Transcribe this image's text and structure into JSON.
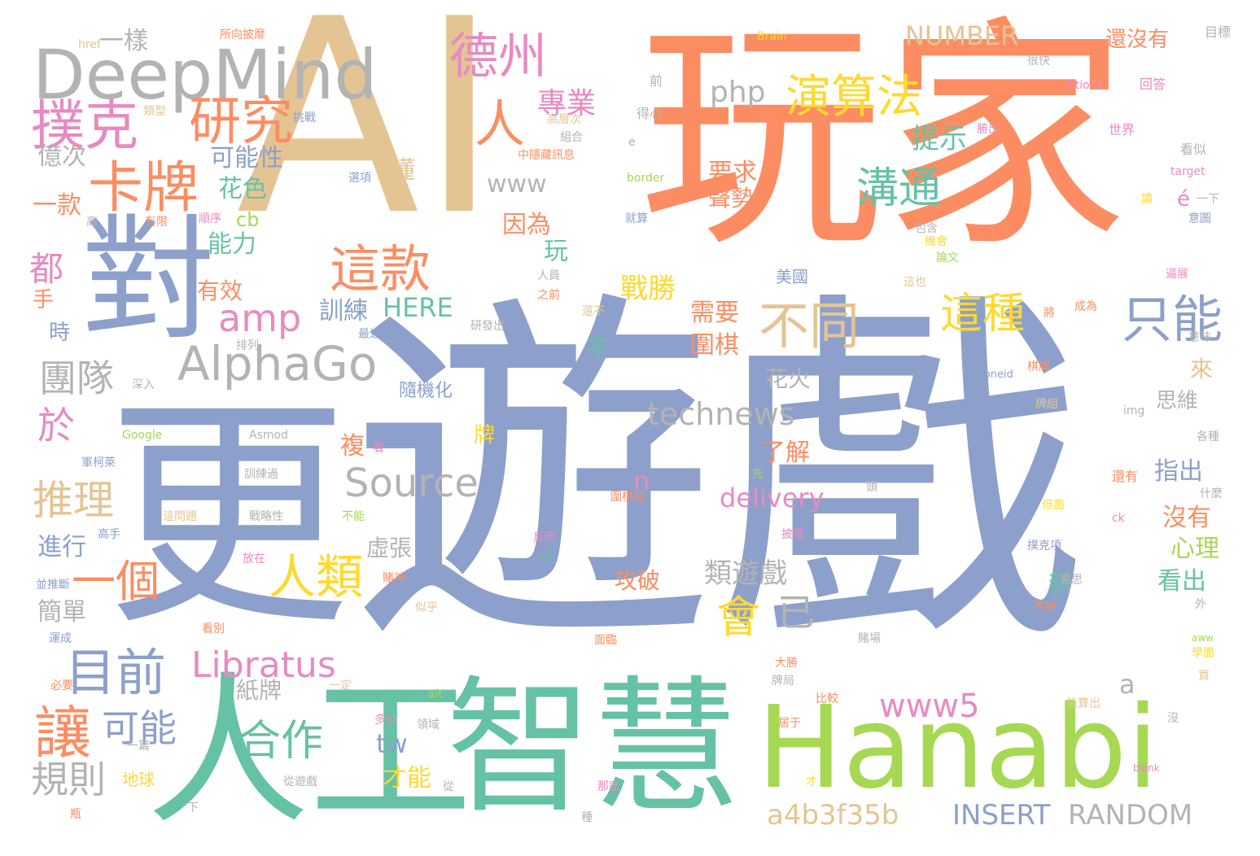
{
  "palette": {
    "salmon": "#fc8d62",
    "periwinkle": "#8da0cb",
    "teal": "#66c2a5",
    "gold": "#e5c494",
    "lime": "#a6d854",
    "gray": "#b3b3b3",
    "pink": "#e78ac3",
    "yellow": "#ffd92f"
  },
  "words": [
    {
      "text": "AI"
    },
    {
      "text": "玩家"
    },
    {
      "text": "遊戲"
    },
    {
      "text": "更"
    },
    {
      "text": "對"
    },
    {
      "text": "人工"
    },
    {
      "text": "智慧"
    },
    {
      "text": "Hanabi"
    },
    {
      "text": "DeepMind"
    },
    {
      "text": "撲克"
    },
    {
      "text": "研究"
    },
    {
      "text": "卡牌"
    },
    {
      "text": "德州"
    },
    {
      "text": "人"
    },
    {
      "text": "演算法"
    },
    {
      "text": "專業"
    },
    {
      "text": "AlphaGo"
    },
    {
      "text": "這款"
    },
    {
      "text": "不同"
    },
    {
      "text": "只能"
    },
    {
      "text": "這種"
    },
    {
      "text": "溝通"
    },
    {
      "text": "提示"
    },
    {
      "text": "目前"
    },
    {
      "text": "Libratus"
    },
    {
      "text": "讓"
    },
    {
      "text": "可能"
    },
    {
      "text": "合作"
    },
    {
      "text": "規則"
    },
    {
      "text": "人類"
    },
    {
      "text": "一個"
    },
    {
      "text": "推理"
    },
    {
      "text": "於"
    },
    {
      "text": "都"
    },
    {
      "text": "團隊"
    },
    {
      "text": "Source"
    },
    {
      "text": "technews"
    },
    {
      "text": "amp"
    },
    {
      "text": "會"
    },
    {
      "text": "已"
    },
    {
      "text": "www5"
    },
    {
      "text": "a4b3f35b"
    },
    {
      "text": "INSERT"
    },
    {
      "text": "RANDOM"
    },
    {
      "text": "NUMBER"
    },
    {
      "text": "還沒有"
    },
    {
      "text": "php"
    },
    {
      "text": "www"
    },
    {
      "text": "delivery"
    },
    {
      "text": "HERE"
    },
    {
      "text": "可能性"
    },
    {
      "text": "花色"
    },
    {
      "text": "能力"
    },
    {
      "text": "億次"
    },
    {
      "text": "一款"
    },
    {
      "text": "一樣"
    },
    {
      "text": "有效"
    },
    {
      "text": "訓練"
    },
    {
      "text": "戰勝"
    },
    {
      "text": "需要"
    },
    {
      "text": "圍棋"
    },
    {
      "text": "要求"
    },
    {
      "text": "聲勢"
    },
    {
      "text": "因為"
    },
    {
      "text": "玩"
    },
    {
      "text": "懂"
    },
    {
      "text": "cb"
    },
    {
      "text": "花火"
    },
    {
      "text": "為"
    },
    {
      "text": "來"
    },
    {
      "text": "思維"
    },
    {
      "text": "了解"
    },
    {
      "text": "指出"
    },
    {
      "text": "沒有"
    },
    {
      "text": "心理"
    },
    {
      "text": "看出"
    },
    {
      "text": "新"
    },
    {
      "text": "類遊戲"
    },
    {
      "text": "攻破"
    },
    {
      "text": "虛張"
    },
    {
      "text": "紙牌"
    },
    {
      "text": "簡單"
    },
    {
      "text": "進行"
    },
    {
      "text": "才能"
    },
    {
      "text": "tw"
    },
    {
      "text": "n"
    },
    {
      "text": "a"
    },
    {
      "text": "é"
    },
    {
      "text": "不"
    },
    {
      "text": "牌"
    },
    {
      "text": "複"
    },
    {
      "text": "隨機化"
    },
    {
      "text": "美國"
    },
    {
      "text": "時"
    },
    {
      "text": "手"
    },
    {
      "text": "一下"
    },
    {
      "text": "目標"
    },
    {
      "text": "回答"
    },
    {
      "text": "世界"
    },
    {
      "text": "看似"
    },
    {
      "text": "target"
    },
    {
      "text": "讀"
    },
    {
      "text": "意圖"
    },
    {
      "text": "逼展"
    },
    {
      "text": "這也"
    },
    {
      "text": "成為"
    },
    {
      "text": "將"
    },
    {
      "text": "意味"
    },
    {
      "text": "棋牌"
    },
    {
      "text": "zoneid"
    },
    {
      "text": "牌組"
    },
    {
      "text": "img"
    },
    {
      "text": "各種"
    },
    {
      "text": "還有"
    },
    {
      "text": "什麼"
    },
    {
      "text": "但面"
    },
    {
      "text": "ck"
    },
    {
      "text": "撲克項"
    },
    {
      "text": "意思"
    },
    {
      "text": "不好"
    },
    {
      "text": "外"
    },
    {
      "text": "aww"
    },
    {
      "text": "學面"
    },
    {
      "text": "買"
    },
    {
      "text": "能算出"
    },
    {
      "text": "沒"
    },
    {
      "text": "blank"
    },
    {
      "text": "勝出"
    },
    {
      "text": "包含"
    },
    {
      "text": "論文"
    },
    {
      "text": "機會"
    },
    {
      "text": "Brain"
    },
    {
      "text": "很快"
    },
    {
      "text": "ditions"
    },
    {
      "text": "得心"
    },
    {
      "text": "前"
    },
    {
      "text": "高層次"
    },
    {
      "text": "組合"
    },
    {
      "text": "中隱藏訊息"
    },
    {
      "text": "e"
    },
    {
      "text": "border"
    },
    {
      "text": "就算"
    },
    {
      "text": "所向披靡"
    },
    {
      "text": "href"
    },
    {
      "text": "類型"
    },
    {
      "text": "挑戰"
    },
    {
      "text": "選項"
    },
    {
      "text": "高"
    },
    {
      "text": "有限"
    },
    {
      "text": "順序"
    },
    {
      "text": "人員"
    },
    {
      "text": "之前"
    },
    {
      "text": "還不"
    },
    {
      "text": "研發出"
    },
    {
      "text": "最近"
    },
    {
      "text": "排列"
    },
    {
      "text": "不過"
    },
    {
      "text": "深入"
    },
    {
      "text": "Google"
    },
    {
      "text": "Asmod"
    },
    {
      "text": "看"
    },
    {
      "text": "軍柯萊"
    },
    {
      "text": "訓練過"
    },
    {
      "text": "先"
    },
    {
      "text": "頭"
    },
    {
      "text": "圍棋冠"
    },
    {
      "text": "這問題"
    },
    {
      "text": "戰略性"
    },
    {
      "text": "不能"
    },
    {
      "text": "高手"
    },
    {
      "text": "反而"
    },
    {
      "text": "披露"
    },
    {
      "text": "src"
    },
    {
      "text": "放在"
    },
    {
      "text": "並推斷"
    },
    {
      "text": "賭神"
    },
    {
      "text": "似乎"
    },
    {
      "text": "看別"
    },
    {
      "text": "運成"
    },
    {
      "text": "面臨"
    },
    {
      "text": "賭場"
    },
    {
      "text": "大勝"
    },
    {
      "text": "牌局"
    },
    {
      "text": "必要"
    },
    {
      "text": "一定"
    },
    {
      "text": "alt"
    },
    {
      "text": "比較"
    },
    {
      "text": "居于"
    },
    {
      "text": "多位"
    },
    {
      "text": "領域"
    },
    {
      "text": "一篇"
    },
    {
      "text": "地球"
    },
    {
      "text": "從遊戲"
    },
    {
      "text": "從"
    },
    {
      "text": "那麼"
    },
    {
      "text": "瓶"
    },
    {
      "text": "下"
    },
    {
      "text": "種"
    },
    {
      "text": "才"
    }
  ]
}
